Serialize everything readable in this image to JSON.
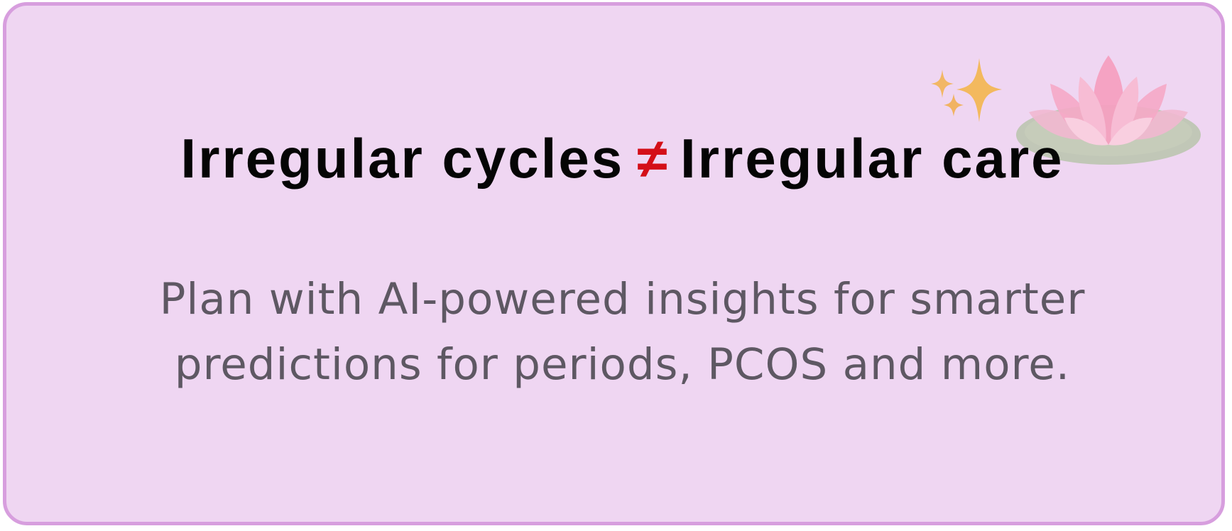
{
  "card": {
    "headline_left": "Irregular cycles",
    "headline_symbol": "≠",
    "headline_right": "Irregular care",
    "subtext_line1": "Plan with AI-powered insights for smarter",
    "subtext_line2": "predictions for periods, PCOS and more."
  },
  "colors": {
    "card_background": "#efd6f2",
    "card_border": "#d79ede",
    "headline": "#050505",
    "symbol": "#d40f18",
    "subtext": "#5e5863"
  },
  "icons": [
    "sparkles-icon",
    "lotus-icon"
  ]
}
